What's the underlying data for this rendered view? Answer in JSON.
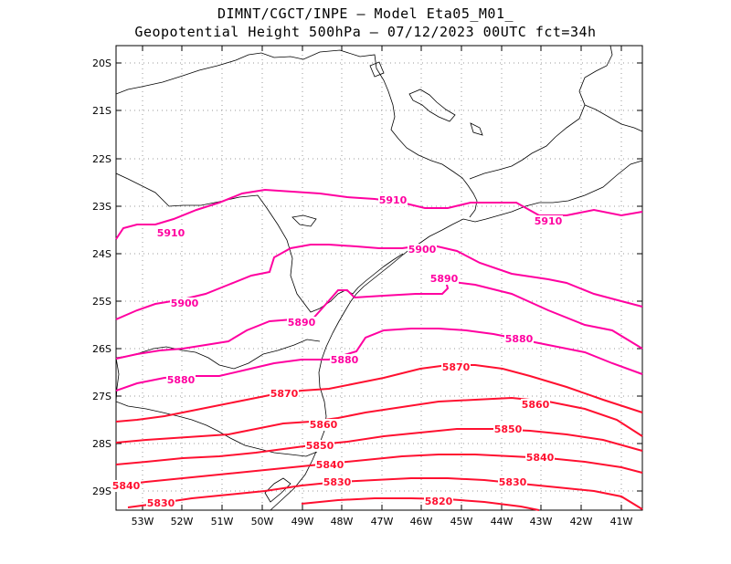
{
  "header": {
    "line1": "DIMNT/CGCT/INPE –  Model Eta05_M01_",
    "line2": "Geopotential Height 500hPa –  07/12/2023 00UTC fct=34h"
  },
  "axes": {
    "lat_labels": [
      "20S",
      "21S",
      "22S",
      "23S",
      "24S",
      "25S",
      "26S",
      "27S",
      "28S",
      "29S"
    ],
    "lon_labels": [
      "53W",
      "52W",
      "51W",
      "50W",
      "49W",
      "48W",
      "47W",
      "46W",
      "45W",
      "44W",
      "43W",
      "42W",
      "41W"
    ]
  },
  "colors": {
    "contour_high": "#ff00a0",
    "contour_low": "#ff1030",
    "coastline": "#000000",
    "grid": "#999999"
  },
  "map_data": {
    "type": "contour map",
    "field": "Geopotential Height 500hPa",
    "levels": [
      5910,
      5900,
      5890,
      5880,
      5870,
      5860,
      5850,
      5840,
      5830,
      5820
    ],
    "label_text": [
      "5910",
      "5910",
      "5910",
      "5900",
      "5900",
      "5890",
      "5890",
      "5880",
      "5880",
      "5880",
      "5870",
      "5870",
      "5860",
      "5860",
      "5850",
      "5850",
      "5840",
      "5840",
      "5840",
      "5830",
      "5830",
      "5830",
      "5820"
    ]
  }
}
